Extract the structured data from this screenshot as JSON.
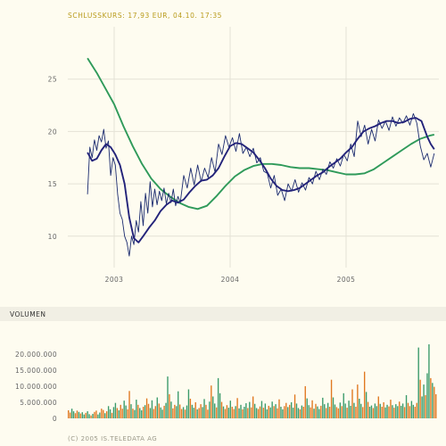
{
  "header": {
    "caption": "SCHLUSSKURS: 17,93 EUR, 04.10. 17:35"
  },
  "volume_section": {
    "label": "VOLUMEN"
  },
  "footer": {
    "copyright": "(C) 2005 IS.TELEDATA AG"
  },
  "colors": {
    "price": "#1a2a6e",
    "ma_short": "#23237a",
    "ma_long": "#2f9a5a",
    "volume_green": "#3a9a6a",
    "volume_orange": "#e07820",
    "grid": "#e4e2d6"
  },
  "chart_data": [
    {
      "type": "line",
      "title": "",
      "x_range": [
        2002.6,
        2005.8
      ],
      "ylim": [
        7,
        30
      ],
      "yticks": [
        10,
        15,
        20,
        25
      ],
      "ytick_labels": [
        "10",
        "15",
        "20",
        "25"
      ],
      "xticks": [
        2003,
        2004,
        2005
      ],
      "xtick_labels": [
        "2003",
        "2004",
        "2005"
      ],
      "grid": true,
      "series": [
        {
          "key": "close",
          "x": [
            2002.77,
            2002.79,
            2002.81,
            2002.83,
            2002.85,
            2002.87,
            2002.89,
            2002.91,
            2002.93,
            2002.95,
            2002.97,
            2002.99,
            2003.01,
            2003.03,
            2003.05,
            2003.07,
            2003.09,
            2003.11,
            2003.13,
            2003.15,
            2003.17,
            2003.19,
            2003.21,
            2003.23,
            2003.25,
            2003.27,
            2003.29,
            2003.31,
            2003.33,
            2003.35,
            2003.37,
            2003.39,
            2003.41,
            2003.43,
            2003.45,
            2003.47,
            2003.49,
            2003.51,
            2003.53,
            2003.55,
            2003.57,
            2003.6,
            2003.63,
            2003.66,
            2003.69,
            2003.72,
            2003.75,
            2003.78,
            2003.81,
            2003.84,
            2003.87,
            2003.9,
            2003.93,
            2003.96,
            2003.99,
            2004.02,
            2004.05,
            2004.08,
            2004.11,
            2004.14,
            2004.17,
            2004.2,
            2004.23,
            2004.26,
            2004.29,
            2004.32,
            2004.35,
            2004.38,
            2004.41,
            2004.44,
            2004.47,
            2004.5,
            2004.53,
            2004.56,
            2004.59,
            2004.62,
            2004.65,
            2004.68,
            2004.71,
            2004.74,
            2004.77,
            2004.8,
            2004.83,
            2004.86,
            2004.89,
            2004.92,
            2004.95,
            2004.98,
            2005.01,
            2005.04,
            2005.07,
            2005.1,
            2005.13,
            2005.16,
            2005.19,
            2005.22,
            2005.25,
            2005.28,
            2005.31,
            2005.34,
            2005.37,
            2005.4,
            2005.43,
            2005.46,
            2005.49,
            2005.52,
            2005.55,
            2005.58,
            2005.61,
            2005.64,
            2005.67,
            2005.7,
            2005.73,
            2005.76
          ],
          "y": [
            14.0,
            18.5,
            17.5,
            19.2,
            18.2,
            19.6,
            19.0,
            20.2,
            18.4,
            19.1,
            15.8,
            17.5,
            16.8,
            14.0,
            12.2,
            11.6,
            10.0,
            9.4,
            8.1,
            10.0,
            9.2,
            11.5,
            10.4,
            13.3,
            11.0,
            14.1,
            12.2,
            15.2,
            12.8,
            14.5,
            13.0,
            14.3,
            13.4,
            14.6,
            13.1,
            14.1,
            13.2,
            14.5,
            12.9,
            13.8,
            13.2,
            15.8,
            14.6,
            16.5,
            14.9,
            16.8,
            15.2,
            16.5,
            15.6,
            17.5,
            16.1,
            18.8,
            17.8,
            19.6,
            18.5,
            19.4,
            18.1,
            19.8,
            17.9,
            18.5,
            17.6,
            18.4,
            17.0,
            17.5,
            16.2,
            16.0,
            14.6,
            15.8,
            13.9,
            14.5,
            13.4,
            15.0,
            14.3,
            15.4,
            14.2,
            15.1,
            14.4,
            15.6,
            15.0,
            16.2,
            15.4,
            16.4,
            15.9,
            17.1,
            16.5,
            17.4,
            16.7,
            17.8,
            17.2,
            18.8,
            17.6,
            21.0,
            19.5,
            20.6,
            18.8,
            20.2,
            19.1,
            21.1,
            20.3,
            21.0,
            20.1,
            21.4,
            20.5,
            21.3,
            20.8,
            21.5,
            20.6,
            21.7,
            20.8,
            18.6,
            17.3,
            17.9,
            16.6,
            17.9
          ]
        },
        {
          "key": "ma_short",
          "x": [
            2002.77,
            2002.81,
            2002.85,
            2002.89,
            2002.93,
            2002.97,
            2003.01,
            2003.05,
            2003.09,
            2003.13,
            2003.17,
            2003.21,
            2003.25,
            2003.3,
            2003.35,
            2003.4,
            2003.45,
            2003.5,
            2003.55,
            2003.6,
            2003.65,
            2003.7,
            2003.75,
            2003.8,
            2003.85,
            2003.9,
            2003.95,
            2004.0,
            2004.05,
            2004.1,
            2004.15,
            2004.2,
            2004.25,
            2004.3,
            2004.35,
            2004.4,
            2004.45,
            2004.5,
            2004.55,
            2004.6,
            2004.65,
            2004.7,
            2004.75,
            2004.8,
            2004.85,
            2004.9,
            2004.95,
            2005.0,
            2005.05,
            2005.1,
            2005.15,
            2005.2,
            2005.25,
            2005.3,
            2005.35,
            2005.4,
            2005.45,
            2005.5,
            2005.55,
            2005.6,
            2005.65,
            2005.7,
            2005.73,
            2005.76
          ],
          "y": [
            18.0,
            17.2,
            17.4,
            18.2,
            18.8,
            18.5,
            17.8,
            16.8,
            15.0,
            11.8,
            9.8,
            9.4,
            10.0,
            10.8,
            11.5,
            12.4,
            13.0,
            13.4,
            13.2,
            13.5,
            14.2,
            14.8,
            15.3,
            15.4,
            15.8,
            16.5,
            17.6,
            18.6,
            18.9,
            18.8,
            18.4,
            18.0,
            17.3,
            16.5,
            15.5,
            14.8,
            14.4,
            14.3,
            14.4,
            14.6,
            15.0,
            15.4,
            15.8,
            16.1,
            16.6,
            17.0,
            17.4,
            18.0,
            18.5,
            19.3,
            20.0,
            20.3,
            20.5,
            20.8,
            21.0,
            21.0,
            20.8,
            20.9,
            21.2,
            21.3,
            21.0,
            19.5,
            18.8,
            18.3
          ]
        },
        {
          "key": "ma_long",
          "x": [
            2002.77,
            2002.85,
            2002.93,
            2003.0,
            2003.08,
            2003.16,
            2003.24,
            2003.32,
            2003.4,
            2003.48,
            2003.56,
            2003.64,
            2003.72,
            2003.8,
            2003.88,
            2003.96,
            2004.04,
            2004.12,
            2004.2,
            2004.28,
            2004.36,
            2004.44,
            2004.52,
            2004.6,
            2004.68,
            2004.76,
            2004.84,
            2004.92,
            2005.0,
            2005.08,
            2005.16,
            2005.24,
            2005.32,
            2005.4,
            2005.48,
            2005.56,
            2005.64,
            2005.72,
            2005.76
          ],
          "y": [
            27.0,
            25.6,
            24.0,
            22.6,
            20.5,
            18.6,
            16.9,
            15.5,
            14.5,
            13.8,
            13.2,
            12.8,
            12.6,
            12.9,
            13.8,
            14.8,
            15.7,
            16.3,
            16.7,
            16.9,
            16.9,
            16.8,
            16.6,
            16.5,
            16.5,
            16.4,
            16.3,
            16.1,
            15.9,
            15.9,
            16.0,
            16.4,
            17.0,
            17.6,
            18.2,
            18.8,
            19.3,
            19.6,
            19.7
          ]
        }
      ]
    },
    {
      "type": "bar",
      "title": "",
      "ylim": [
        0,
        23000000
      ],
      "yticks": [
        0,
        5000000,
        10000000,
        15000000,
        20000000
      ],
      "ytick_labels": [
        "0",
        "5.000.000",
        "10.000.000",
        "15.000.000",
        "20.000.000"
      ],
      "grid": false,
      "volumes": [
        2.5,
        1.8,
        3.0,
        2.2,
        1.6,
        2.4,
        2.0,
        1.5,
        1.9,
        1.2,
        1.7,
        2.2,
        1.3,
        0.9,
        1.4,
        2.0,
        2.4,
        1.2,
        1.8,
        3.0,
        2.6,
        1.6,
        2.2,
        3.8,
        2.8,
        1.7,
        3.5,
        4.8,
        3.2,
        2.5,
        4.2,
        3.0,
        5.5,
        4.0,
        2.8,
        8.5,
        4.4,
        3.0,
        2.6,
        5.8,
        4.2,
        3.2,
        2.5,
        3.6,
        4.1,
        6.2,
        4.5,
        3.2,
        5.6,
        2.9,
        3.8,
        6.5,
        4.6,
        3.4,
        2.7,
        3.9,
        4.8,
        13.0,
        7.5,
        5.2,
        3.1,
        4.2,
        3.8,
        8.4,
        4.3,
        2.9,
        3.5,
        2.7,
        4.0,
        9.0,
        6.1,
        4.2,
        3.3,
        5.0,
        2.8,
        3.2,
        4.4,
        3.5,
        6.0,
        4.2,
        2.7,
        5.2,
        10.2,
        6.8,
        4.6,
        3.4,
        12.5,
        7.8,
        5.1,
        3.7,
        2.9,
        4.1,
        3.3,
        5.5,
        3.6,
        2.9,
        3.8,
        6.3,
        3.1,
        4.2,
        2.8,
        3.6,
        4.7,
        3.2,
        5.1,
        3.4,
        6.8,
        4.5,
        3.2,
        2.9,
        3.7,
        5.4,
        3.3,
        4.6,
        2.8,
        3.9,
        3.4,
        5.2,
        3.8,
        4.4,
        3.1,
        5.9,
        3.6,
        2.8,
        3.8,
        4.8,
        3.5,
        4.2,
        5.0,
        3.3,
        7.4,
        4.6,
        3.2,
        2.8,
        4.0,
        3.6,
        10.0,
        6.2,
        4.1,
        3.4,
        5.6,
        3.0,
        4.5,
        3.7,
        2.9,
        3.9,
        6.4,
        4.4,
        3.2,
        4.8,
        3.6,
        12.0,
        6.5,
        4.3,
        3.5,
        3.1,
        4.9,
        3.8,
        7.8,
        4.6,
        3.3,
        5.5,
        3.9,
        9.0,
        4.8,
        3.6,
        10.5,
        6.1,
        4.5,
        3.5,
        14.5,
        8.2,
        5.1,
        3.6,
        4.0,
        3.2,
        4.6,
        3.8,
        6.8,
        4.5,
        3.6,
        5.0,
        3.4,
        4.2,
        3.7,
        5.8,
        4.1,
        3.3,
        4.4,
        3.8,
        5.2,
        3.9,
        4.6,
        3.5,
        7.2,
        4.8,
        3.8,
        5.4,
        4.2,
        3.6,
        4.8,
        22.0,
        12.0,
        6.8,
        10.5,
        7.2,
        14.0,
        23.0,
        12.5,
        11.0,
        9.8,
        7.5
      ],
      "volume_unit": 1000000
    }
  ]
}
